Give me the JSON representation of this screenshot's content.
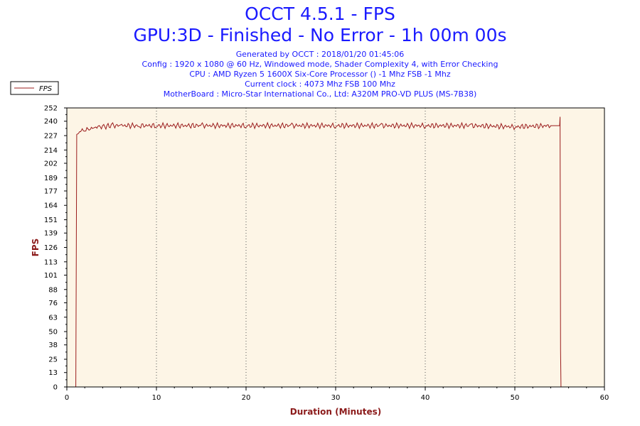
{
  "header": {
    "title": "OCCT 4.5.1 - FPS",
    "subtitle": "GPU:3D - Finished - No Error - 1h 00m 00s",
    "info": [
      "Generated by OCCT : 2018/01/20 01:45:06",
      "Config : 1920 x 1080 @ 60 Hz, Windowed mode, Shader Complexity 4, with Error Checking",
      "CPU : AMD Ryzen 5 1600X Six-Core Processor () -1 Mhz FSB -1 Mhz",
      "Current clock : 4073 Mhz FSB 100 Mhz",
      "MotherBoard : Micro-Star International Co., Ltd: A320M PRO-VD PLUS (MS-7B38)"
    ]
  },
  "colors": {
    "title": "#1a1aff",
    "axis_label": "#8b1a1a",
    "series": "#9b1c1c",
    "plot_bg": "#fdf5e6",
    "grid": "#555555"
  },
  "chart_data": {
    "type": "line",
    "xlabel": "Duration (Minutes)",
    "ylabel": "FPS",
    "xlim": [
      0,
      60
    ],
    "ylim": [
      0,
      252
    ],
    "x_ticks": [
      0,
      10,
      20,
      30,
      40,
      50,
      60
    ],
    "y_ticks": [
      0,
      13,
      25,
      38,
      50,
      63,
      76,
      88,
      101,
      113,
      126,
      139,
      151,
      164,
      177,
      189,
      202,
      214,
      227,
      240,
      252
    ],
    "legend": {
      "position": "top-left",
      "entries": [
        "FPS"
      ]
    },
    "grid": "vertical dotted",
    "series": [
      {
        "name": "FPS",
        "x": [
          0,
          1.0,
          1.1,
          1.3,
          1.6,
          2.0,
          2.5,
          3.0,
          3.5,
          4.0,
          5.0,
          6.0,
          8.0,
          10.0,
          15.0,
          20.0,
          25.0,
          30.0,
          35.0,
          40.0,
          45.0,
          50.0,
          54.0,
          55.0,
          55.05,
          55.1,
          55.15,
          55.2
        ],
        "values": [
          0,
          0,
          228,
          229,
          231,
          232,
          233,
          234,
          235,
          235,
          236,
          236,
          236,
          236,
          236,
          236,
          236,
          236,
          236,
          236,
          236,
          235,
          236,
          236,
          244,
          33,
          0,
          0
        ],
        "ripple": 2
      }
    ]
  }
}
